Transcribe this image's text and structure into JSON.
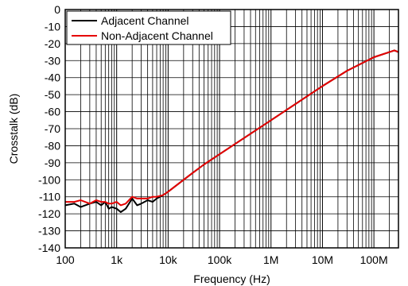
{
  "chart_data": {
    "type": "line",
    "xlabel": "Frequency (Hz)",
    "ylabel": "Crosstalk (dB)",
    "xscale": "log",
    "xlim": [
      100,
      300000000
    ],
    "ylim": [
      -140,
      0
    ],
    "grid": true,
    "legend_position": "top-left",
    "x_tick_labels": [
      "100",
      "1k",
      "10k",
      "100k",
      "1M",
      "10M",
      "100M"
    ],
    "y_tick_labels": [
      "0",
      "-10",
      "-20",
      "-30",
      "-40",
      "-50",
      "-60",
      "-70",
      "-80",
      "-90",
      "-100",
      "-110",
      "-120",
      "-130",
      "-140"
    ],
    "series": [
      {
        "name": "Adjacent Channel",
        "color": "#000000",
        "points": [
          [
            100,
            -115
          ],
          [
            150,
            -114
          ],
          [
            200,
            -116
          ],
          [
            300,
            -114
          ],
          [
            400,
            -113
          ],
          [
            500,
            -115
          ],
          [
            600,
            -113
          ],
          [
            700,
            -117
          ],
          [
            800,
            -116
          ],
          [
            1000,
            -117
          ],
          [
            1200,
            -119
          ],
          [
            1500,
            -117
          ],
          [
            2000,
            -111
          ],
          [
            2500,
            -115
          ],
          [
            3000,
            -114
          ],
          [
            4000,
            -112
          ],
          [
            5000,
            -113
          ],
          [
            6000,
            -111
          ],
          [
            8000,
            -109
          ],
          [
            10000,
            -107
          ],
          [
            20000,
            -100
          ],
          [
            30000,
            -96
          ],
          [
            50000,
            -91
          ],
          [
            100000,
            -85
          ],
          [
            1000000,
            -65
          ],
          [
            10000000,
            -45
          ],
          [
            30000000,
            -36
          ],
          [
            100000000,
            -28
          ],
          [
            200000000,
            -25
          ],
          [
            250000000,
            -24
          ],
          [
            300000000,
            -25
          ]
        ]
      },
      {
        "name": "Non-Adjacent Channel",
        "color": "#e60000",
        "points": [
          [
            100,
            -113
          ],
          [
            150,
            -113
          ],
          [
            200,
            -112
          ],
          [
            300,
            -114
          ],
          [
            400,
            -112
          ],
          [
            500,
            -113
          ],
          [
            600,
            -113
          ],
          [
            700,
            -114
          ],
          [
            800,
            -114
          ],
          [
            1000,
            -113
          ],
          [
            1200,
            -115
          ],
          [
            1500,
            -114
          ],
          [
            2000,
            -110
          ],
          [
            2500,
            -111
          ],
          [
            3000,
            -111
          ],
          [
            4000,
            -111
          ],
          [
            5000,
            -110
          ],
          [
            6000,
            -110
          ],
          [
            8000,
            -109
          ],
          [
            10000,
            -107
          ],
          [
            20000,
            -100
          ],
          [
            30000,
            -96
          ],
          [
            50000,
            -91
          ],
          [
            100000,
            -85
          ],
          [
            1000000,
            -65
          ],
          [
            10000000,
            -45
          ],
          [
            30000000,
            -36
          ],
          [
            100000000,
            -28
          ],
          [
            200000000,
            -25
          ],
          [
            250000000,
            -24
          ],
          [
            300000000,
            -25
          ]
        ]
      }
    ]
  }
}
